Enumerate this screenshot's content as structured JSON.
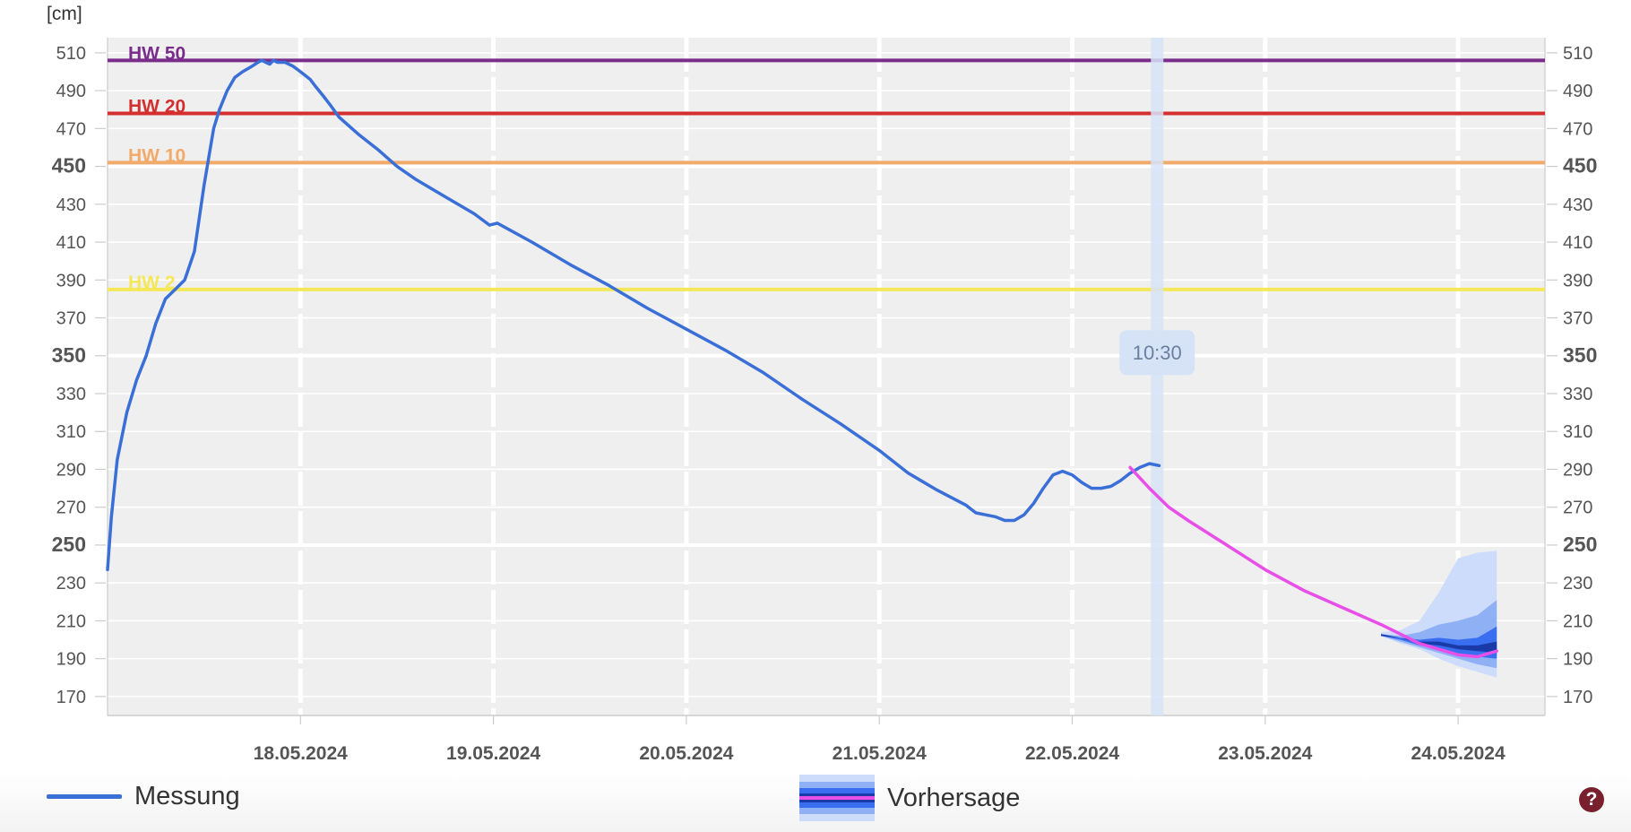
{
  "chart_data": {
    "type": "line",
    "unit_label": "[cm]",
    "ylim": [
      160,
      518
    ],
    "yticks": [
      170,
      190,
      210,
      230,
      250,
      270,
      290,
      310,
      330,
      350,
      370,
      390,
      410,
      430,
      450,
      470,
      490,
      510
    ],
    "major_yticks": [
      250,
      350,
      450
    ],
    "x_tick_labels": [
      "18.05.2024",
      "19.05.2024",
      "20.05.2024",
      "21.05.2024",
      "22.05.2024",
      "23.05.2024",
      "24.05.2024"
    ],
    "now_label": "10:30",
    "grid": true,
    "thresholds": [
      {
        "name": "HW 50",
        "value": 506,
        "color": "#7b2d8c"
      },
      {
        "name": "HW 20",
        "value": 478,
        "color": "#d32f2f"
      },
      {
        "name": "HW 10",
        "value": 452,
        "color": "#f2aa6b"
      },
      {
        "name": "HW 2",
        "value": 385,
        "color": "#f4e85a"
      }
    ],
    "series": [
      {
        "name": "Messung",
        "color": "#3b6fd8",
        "x": [
          17.0,
          17.02,
          17.05,
          17.1,
          17.15,
          17.2,
          17.25,
          17.3,
          17.35,
          17.4,
          17.45,
          17.5,
          17.55,
          17.58,
          17.62,
          17.66,
          17.7,
          17.75,
          17.78,
          17.8,
          17.82,
          17.84,
          17.86,
          17.88,
          17.92,
          17.96,
          18.0,
          18.05,
          18.08,
          18.12,
          18.15,
          18.2,
          18.3,
          18.4,
          18.5,
          18.6,
          18.7,
          18.8,
          18.9,
          18.98,
          19.02,
          19.2,
          19.4,
          19.6,
          19.8,
          20.0,
          20.2,
          20.4,
          20.6,
          20.8,
          21.0,
          21.15,
          21.3,
          21.45,
          21.5,
          21.55,
          21.6,
          21.65,
          21.7,
          21.75,
          21.8,
          21.85,
          21.9,
          21.95,
          22.0,
          22.05,
          22.1,
          22.15,
          22.2,
          22.25,
          22.3,
          22.35,
          22.4,
          22.45
        ],
        "y": [
          237,
          265,
          295,
          320,
          337,
          350,
          367,
          380,
          385,
          390,
          405,
          440,
          470,
          480,
          490,
          497,
          500,
          503,
          505,
          506,
          505,
          504,
          506,
          505,
          505,
          503,
          500,
          496,
          492,
          487,
          483,
          476,
          467,
          459,
          450,
          443,
          437,
          431,
          425,
          419,
          420,
          410,
          398,
          387,
          375,
          364,
          353,
          341,
          327,
          314,
          300,
          288,
          279,
          271,
          267,
          266,
          265,
          263,
          263,
          266,
          272,
          280,
          287,
          289,
          287,
          283,
          280,
          280,
          281,
          284,
          288,
          291,
          293,
          292
        ]
      },
      {
        "name": "Vorhersage",
        "color": "#e84fe8",
        "x": [
          22.3,
          22.4,
          22.5,
          22.6,
          22.8,
          23.0,
          23.2,
          23.4,
          23.6,
          23.8,
          24.0,
          24.1,
          24.2
        ],
        "y": [
          291,
          280,
          270,
          263,
          250,
          237,
          226,
          217,
          208,
          198,
          192,
          191,
          194
        ],
        "bands": [
          {
            "x": [
              23.6,
              23.7,
              23.8,
              23.9,
              24.0,
              24.1,
              24.2
            ],
            "lo": [
              202,
              198,
              195,
              190,
              186,
              183,
              180
            ],
            "hi": [
              204,
              205,
              210,
              225,
              243,
              246,
              247
            ],
            "color": "#cddcfb"
          },
          {
            "x": [
              23.6,
              23.7,
              23.8,
              23.9,
              24.0,
              24.1,
              24.2
            ],
            "lo": [
              202,
              199,
              196,
              193,
              190,
              187,
              185
            ],
            "hi": [
              203,
              202,
              204,
              208,
              210,
              213,
              221
            ],
            "color": "#8fb0f5"
          },
          {
            "x": [
              23.6,
              23.7,
              23.8,
              23.9,
              24.0,
              24.1,
              24.2
            ],
            "lo": [
              202,
              200,
              197,
              195,
              192,
              191,
              190
            ],
            "hi": [
              203,
              201,
              200,
              201,
              200,
              201,
              207
            ],
            "color": "#3a6ef0"
          },
          {
            "x": [
              23.6,
              23.7,
              23.8,
              23.9,
              24.0,
              24.1,
              24.2
            ],
            "lo": [
              202,
              201,
              198,
              197,
              195,
              194,
              193
            ],
            "hi": [
              203,
              201,
              199,
              199,
              197,
              197,
              199
            ],
            "color": "#1a3aa8"
          }
        ]
      }
    ]
  },
  "legend": {
    "measurement_label": "Messung",
    "forecast_label": "Vorhersage"
  },
  "help_button": {
    "label": "?"
  }
}
